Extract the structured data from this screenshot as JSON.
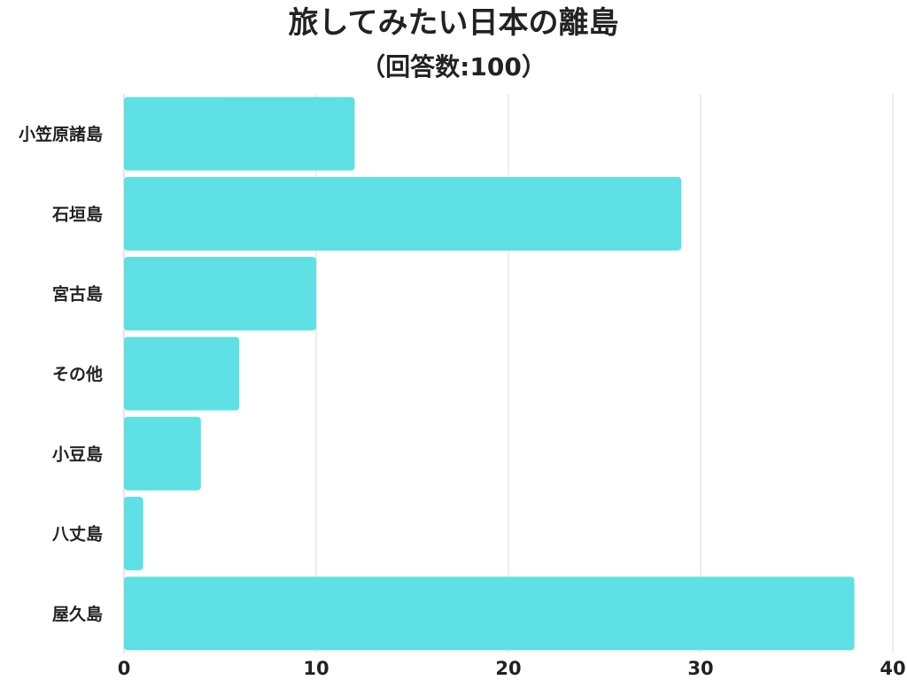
{
  "chart_data": {
    "type": "bar",
    "orientation": "horizontal",
    "title": "旅してみたい日本の離島",
    "subtitle": "（回答数:100）",
    "categories": [
      "小笠原諸島",
      "石垣島",
      "宮古島",
      "その他",
      "小豆島",
      "八丈島",
      "屋久島"
    ],
    "values": [
      12,
      29,
      10,
      6,
      4,
      1,
      38
    ],
    "xlim": [
      0,
      40
    ],
    "xticks": [
      0,
      10,
      20,
      30,
      40
    ],
    "xlabel": "",
    "ylabel": "",
    "grid": true,
    "legend": "none",
    "colors": {
      "bar": "#5ee0e4",
      "grid": "#dddddd",
      "axis": "#cccccc",
      "text": "#222222"
    }
  }
}
